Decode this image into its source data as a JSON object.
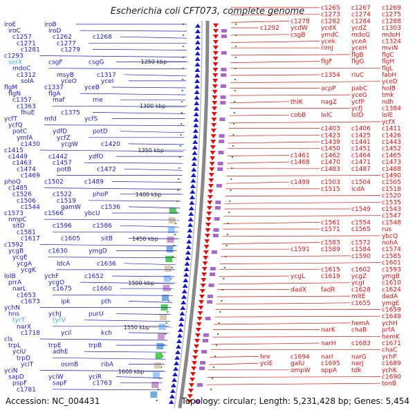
{
  "title": "Escherichia coli CFT073, complete genome",
  "accession_label": "Accession: NC_004431",
  "topology_label": "Topology: circular; Length: 5,231,428 bp; Genes: 5,454",
  "colors": {
    "left_strand": "#1a1acc",
    "right_strand": "#e01010",
    "highlight": "#3ab0e8",
    "backbone": "#888888",
    "tick": "#2a8a2a"
  },
  "kbp_ticks": [
    "1250 kbp",
    "1300 kbp",
    "1350 kbp",
    "1400 kbp",
    "1450 kbp",
    "1500 kbp",
    "1550 kbp",
    "1600 kbp"
  ],
  "left_genes": [
    [
      "iroE",
      "iroB",
      ""
    ],
    [
      "iroC",
      "iroD",
      ""
    ],
    [
      "c1257",
      "c1262",
      "c1268"
    ],
    [
      "c1271",
      "c1277",
      ""
    ],
    [
      "c1281",
      "c1279",
      ""
    ],
    [
      "c1293",
      "",
      ""
    ],
    [
      "serX",
      "csgF",
      "csgG"
    ],
    [
      "mdoC",
      "",
      ""
    ],
    [
      "c1312",
      "msyB",
      "c1317"
    ],
    [
      "solA",
      "yceO",
      "yceI"
    ],
    [
      "flgM",
      "c1337",
      "yceB"
    ],
    [
      "flgN",
      "flgA",
      ""
    ],
    [
      "c1357",
      "maf",
      "rne"
    ],
    [
      "c1363",
      "",
      ""
    ],
    [
      "fhuE",
      "c1375",
      ""
    ],
    [
      "ycfT",
      "mfd",
      "ycfS"
    ],
    [
      "ycfQ",
      "",
      ""
    ],
    [
      "potC",
      "ydfD",
      "potD"
    ],
    [
      "ymfA",
      "ycfZ",
      ""
    ],
    [
      "c1430",
      "ycgW",
      "c1420"
    ],
    [
      "c1415",
      "",
      ""
    ],
    [
      "c1449",
      "c1442",
      "ydfO"
    ],
    [
      "c1463",
      "c1457",
      ""
    ],
    [
      "c1474",
      "potB",
      "c1472"
    ],
    [
      "c1469",
      "",
      ""
    ],
    [
      "phoQ",
      "c1502",
      "c1489"
    ],
    [
      "c1485",
      "",
      ""
    ],
    [
      "c1526",
      "c1522",
      "phoP"
    ],
    [
      "c1506",
      "c1519",
      ""
    ],
    [
      "c1544",
      "gamW",
      "c1536"
    ],
    [
      "c1573",
      "c1566",
      "ybcU"
    ],
    [
      "nmpC",
      "",
      ""
    ],
    [
      "sitD",
      "c1596",
      "c1586"
    ],
    [
      "c1581",
      "",
      ""
    ],
    [
      "c1617",
      "c1605",
      "sitB"
    ],
    [
      "c1592",
      "",
      ""
    ],
    [
      "ycgB",
      "c1630",
      "ymgD"
    ],
    [
      "ycgE",
      "",
      ""
    ],
    [
      "ycgA",
      "ldcA",
      "c1636"
    ],
    [
      "ycgK",
      "",
      ""
    ],
    [
      "lolB",
      "ychF",
      "c1652"
    ],
    [
      "prrA",
      "ycgO",
      ""
    ],
    [
      "narL",
      "c1675",
      "c1660"
    ],
    [
      "c1653",
      "",
      ""
    ],
    [
      "c1673",
      "ipk",
      "pth"
    ],
    [
      "ychN",
      "",
      ""
    ],
    [
      "hns",
      "ychJ",
      "purU"
    ],
    [
      "tyrT",
      "tyrV",
      ""
    ],
    [
      "narX",
      "",
      ""
    ],
    [
      "c1718",
      "ycil",
      "kch"
    ],
    [
      "cls",
      "",
      ""
    ],
    [
      "trpL",
      "trpE",
      "trpB"
    ],
    [
      "yciU",
      "adhE",
      ""
    ],
    [
      "trpD",
      "",
      ""
    ],
    [
      "yciT",
      "osmB",
      "ribA"
    ],
    [
      "yciN",
      "",
      ""
    ],
    [
      "sapD",
      "yciW",
      "yciR"
    ],
    [
      "pspF",
      "sapF",
      "c1763"
    ],
    [
      "c1781",
      "",
      ""
    ]
  ],
  "right_genes": [
    [
      "c1265",
      "c1267",
      "c1269"
    ],
    [
      "c1273",
      "c1274",
      "c1275"
    ],
    [
      "c1278",
      "c1282",
      "c1284",
      "c1288"
    ],
    [
      "c1292",
      "ycdW",
      "ycdX",
      "ycdZ",
      "c1303"
    ],
    [
      "csgB",
      "ymdC",
      "mdoG",
      "mdoH"
    ],
    [
      "ycek",
      "yceA",
      "c1324"
    ],
    [
      "rimJ",
      "yceH",
      "mviN"
    ],
    [
      "flgB",
      "flgC",
      ""
    ],
    [
      "flgF",
      "flgG",
      "flgH"
    ],
    [
      "flgL",
      "",
      ""
    ],
    [
      "c1354",
      "rluC",
      "fabH"
    ],
    [
      "yceD",
      "",
      ""
    ],
    [
      "acpP",
      "pabC",
      "holB"
    ],
    [
      "yceG",
      "tmk",
      ""
    ],
    [
      "thiK",
      "nagZ",
      "ycfP",
      "ndh"
    ],
    [
      "ycfJ",
      "c1384",
      ""
    ],
    [
      "cobB",
      "lolC",
      "lolD",
      "lolE"
    ],
    [
      "ycfX",
      "",
      ""
    ],
    [
      "c1403",
      "c1406",
      "c1411"
    ],
    [
      "c1423",
      "c1425",
      "c1426"
    ],
    [
      "c1439",
      "c1441",
      "c1443"
    ],
    [
      "c1450",
      "c1451",
      "c1452"
    ],
    [
      "c1461",
      "c1462",
      "c1464",
      "c1465"
    ],
    [
      "c1468",
      "c1470",
      "c1471",
      "c1473"
    ],
    [
      "c1483",
      "c1487",
      "c1488"
    ],
    [
      "c1490",
      "",
      ""
    ],
    [
      "c1499",
      "c1503",
      "c1504",
      "c1505"
    ],
    [
      "c1515",
      "icdA",
      "c1518"
    ],
    [
      "c1520",
      "",
      ""
    ],
    [
      "c1535",
      "",
      ""
    ],
    [
      "c1549",
      "c1543",
      ""
    ],
    [
      "c1547",
      "",
      ""
    ],
    [
      "c1561",
      "c1554",
      "c1548"
    ],
    [
      "c1571",
      "c1565",
      "rus"
    ],
    [
      "ybcQ",
      "",
      ""
    ],
    [
      "c1583",
      "c1572",
      "nohA"
    ],
    [
      "c1591",
      "c1589",
      "c1584",
      "c1574"
    ],
    [
      "c1590",
      "c1585",
      ""
    ],
    [
      "c1601",
      "",
      ""
    ],
    [
      "c1615",
      "c1602",
      "c1593"
    ],
    [
      "ycgL",
      "c1619",
      "ycgZ",
      "ymgB"
    ],
    [
      "ycgI",
      "c1610",
      ""
    ],
    [
      "dadX",
      "fadR",
      "c1628",
      "c1624"
    ],
    [
      "mltE",
      "dadA",
      ""
    ],
    [
      "c1655",
      "ymgE",
      ""
    ],
    [
      "c1659",
      "",
      ""
    ],
    [
      "c1649",
      "",
      ""
    ],
    [
      "hemA",
      "ychH",
      ""
    ],
    [
      "narK",
      "chaB",
      "prfA"
    ],
    [
      "hemK",
      "",
      ""
    ],
    [
      "narH",
      "c1683",
      "c1671"
    ],
    [
      "chaC",
      "",
      ""
    ],
    [
      "hnr",
      "c1694",
      "narI",
      "narG",
      "ychP"
    ],
    [
      "yciE",
      "galU",
      "c1695",
      "narJ",
      "c1689"
    ],
    [
      "ompW",
      "oppA",
      "tdk",
      "ychK"
    ],
    [
      "c1690",
      "",
      ""
    ],
    [
      "tonB",
      "",
      ""
    ]
  ]
}
